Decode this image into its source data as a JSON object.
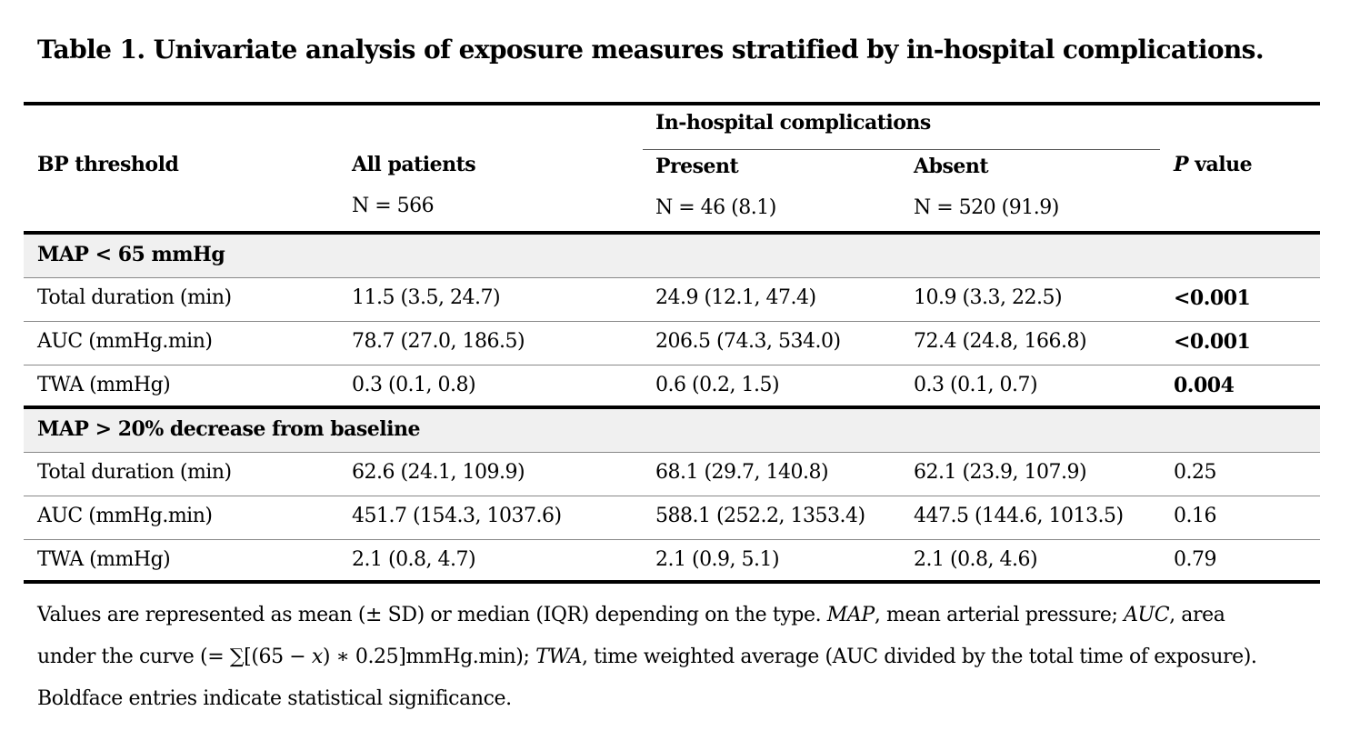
{
  "caption": "Table 1. Univariate analysis of exposure measures stratified by in-hospital complications.",
  "header": {
    "bp_threshold": "BP threshold",
    "all_patients": "All patients",
    "all_patients_n": "N = 566",
    "complications_group": "In-hospital complications",
    "present": "Present",
    "present_n": "N = 46 (8.1)",
    "absent": "Absent",
    "absent_n": "N = 520 (91.9)",
    "p_italic": "P",
    "p_rest": " value"
  },
  "sections": [
    {
      "title": "MAP < 65 mmHg",
      "rows": [
        {
          "measure": "Total duration (min)",
          "all": "11.5 (3.5, 24.7)",
          "present": "24.9 (12.1, 47.4)",
          "absent": "10.9 (3.3, 22.5)",
          "p": "<0.001",
          "significant": true
        },
        {
          "measure": "AUC (mmHg.min)",
          "all": "78.7 (27.0, 186.5)",
          "present": "206.5 (74.3, 534.0)",
          "absent": "72.4 (24.8, 166.8)",
          "p": "<0.001",
          "significant": true
        },
        {
          "measure": "TWA (mmHg)",
          "all": "0.3 (0.1, 0.8)",
          "present": "0.6 (0.2, 1.5)",
          "absent": "0.3 (0.1, 0.7)",
          "p": "0.004",
          "significant": true
        }
      ]
    },
    {
      "title": "MAP > 20% decrease from baseline",
      "rows": [
        {
          "measure": "Total duration (min)",
          "all": "62.6 (24.1, 109.9)",
          "present": "68.1 (29.7, 140.8)",
          "absent": "62.1 (23.9, 107.9)",
          "p": "0.25",
          "significant": false
        },
        {
          "measure": "AUC (mmHg.min)",
          "all": "451.7 (154.3, 1037.6)",
          "present": "588.1 (252.2, 1353.4)",
          "absent": "447.5 (144.6, 1013.5)",
          "p": "0.16",
          "significant": false
        },
        {
          "measure": "TWA (mmHg)",
          "all": "2.1 (0.8, 4.7)",
          "present": "2.1 (0.9, 5.1)",
          "absent": "2.1 (0.8, 4.6)",
          "p": "0.79",
          "significant": false
        }
      ]
    }
  ],
  "footnote": {
    "l1_a": "Values are represented as mean (± SD) or median (IQR) depending on the type. ",
    "map_abbr": "MAP",
    "l1_b": ", mean arterial pressure;  ",
    "auc_abbr": "AUC",
    "l1_c": ", area",
    "l2_a": "under the curve (= ∑[(65 − 𝑥) ∗ 0.25]mmHg.min); ",
    "twa_abbr": "TWA",
    "l2_b": ", time weighted average (AUC divided by the total time of exposure).",
    "l3": "Boldface entries indicate statistical significance."
  }
}
